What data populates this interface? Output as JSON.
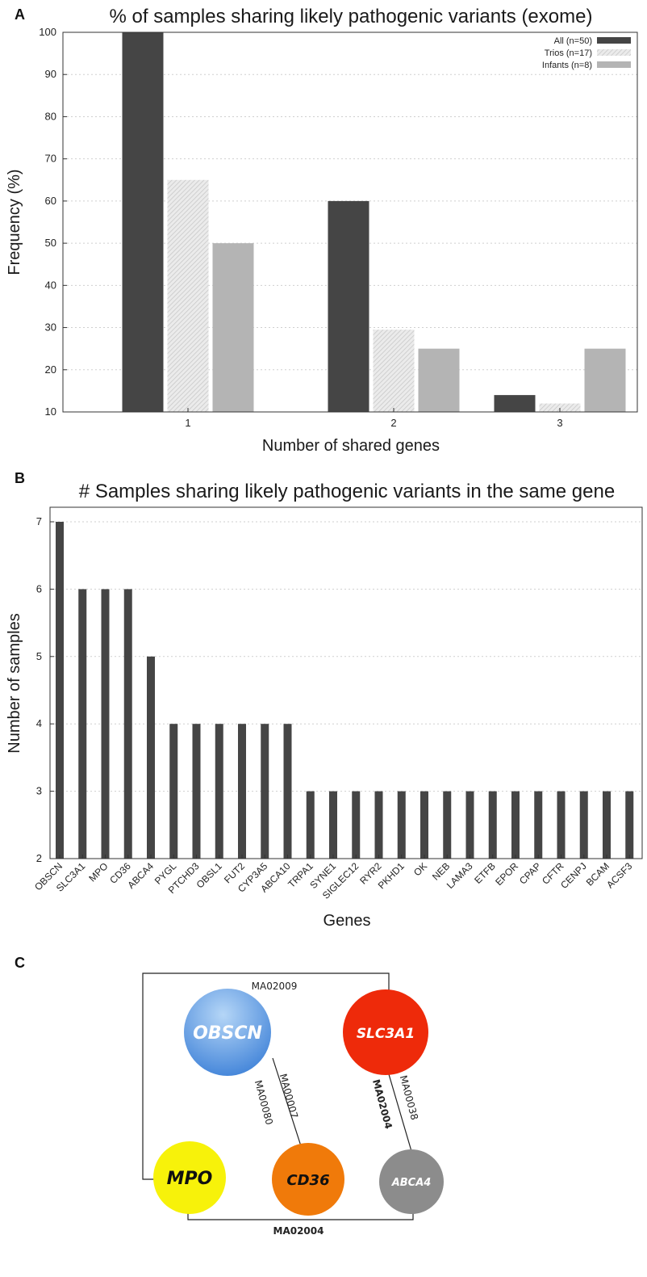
{
  "chart_data": [
    {
      "panel": "A",
      "type": "bar",
      "title": "% of samples sharing likely pathogenic variants (exome)",
      "xlabel": "Number of shared genes",
      "ylabel": "Frequency (%)",
      "categories": [
        "1",
        "2",
        "3"
      ],
      "ylim": [
        10,
        100
      ],
      "yticks": [
        10,
        20,
        30,
        40,
        50,
        60,
        70,
        80,
        90,
        100
      ],
      "grid": true,
      "legend_position": "top-right",
      "series": [
        {
          "name": "All (n=50)",
          "values": [
            100,
            60,
            14
          ],
          "color": "#454545",
          "pattern": "solid"
        },
        {
          "name": "Trios (n=17)",
          "values": [
            65,
            29.5,
            12
          ],
          "color": "#e2e2e2",
          "pattern": "hatch"
        },
        {
          "name": "Infants (n=8)",
          "values": [
            50,
            25,
            25
          ],
          "color": "#b4b4b4",
          "pattern": "solid"
        }
      ]
    },
    {
      "panel": "B",
      "type": "bar",
      "title": "# Samples sharing likely pathogenic variants in the same gene",
      "xlabel": "Genes",
      "ylabel": "Number of samples",
      "categories": [
        "OBSCN",
        "SLC3A1",
        "MPO",
        "CD36",
        "ABCA4",
        "PYGL",
        "PTCHD3",
        "OBSL1",
        "FUT2",
        "CYP3A5",
        "ABCA10",
        "TRPA1",
        "SYNE1",
        "SIGLEC12",
        "RYR2",
        "PKHD1",
        "OK",
        "NEB",
        "LAMA3",
        "ETFB",
        "EPOR",
        "CPAP",
        "CFTR",
        "CENPJ",
        "BCAM",
        "ACSF3"
      ],
      "values": [
        7,
        6,
        6,
        6,
        5,
        4,
        4,
        4,
        4,
        4,
        4,
        3,
        3,
        3,
        3,
        3,
        3,
        3,
        3,
        3,
        3,
        3,
        3,
        3,
        3,
        3
      ],
      "ylim": [
        2,
        7
      ],
      "yticks": [
        2,
        3,
        4,
        5,
        6,
        7
      ],
      "grid": true,
      "bar_color": "#454545"
    }
  ],
  "panels": {
    "a_label": "A",
    "b_label": "B",
    "c_label": "C"
  },
  "network": {
    "nodes": {
      "obscn": {
        "label": "OBSCN",
        "color": "#5b9be0"
      },
      "slc3a1": {
        "label": "SLC3A1",
        "color": "#ee2a0a"
      },
      "mpo": {
        "label": "MPO",
        "color": "#f7f20a"
      },
      "cd36": {
        "label": "CD36",
        "color": "#f07a0a"
      },
      "abca4": {
        "label": "ABCA4",
        "color": "#8c8c8c"
      }
    },
    "edges": {
      "top": "MA02009",
      "obscn_cd36_left": "MA00080",
      "obscn_cd36_right": "MA00007",
      "slc3a1_abca4_left": "MA02004",
      "slc3a1_abca4_right": "MA00038",
      "bottom": "MA02004"
    }
  }
}
